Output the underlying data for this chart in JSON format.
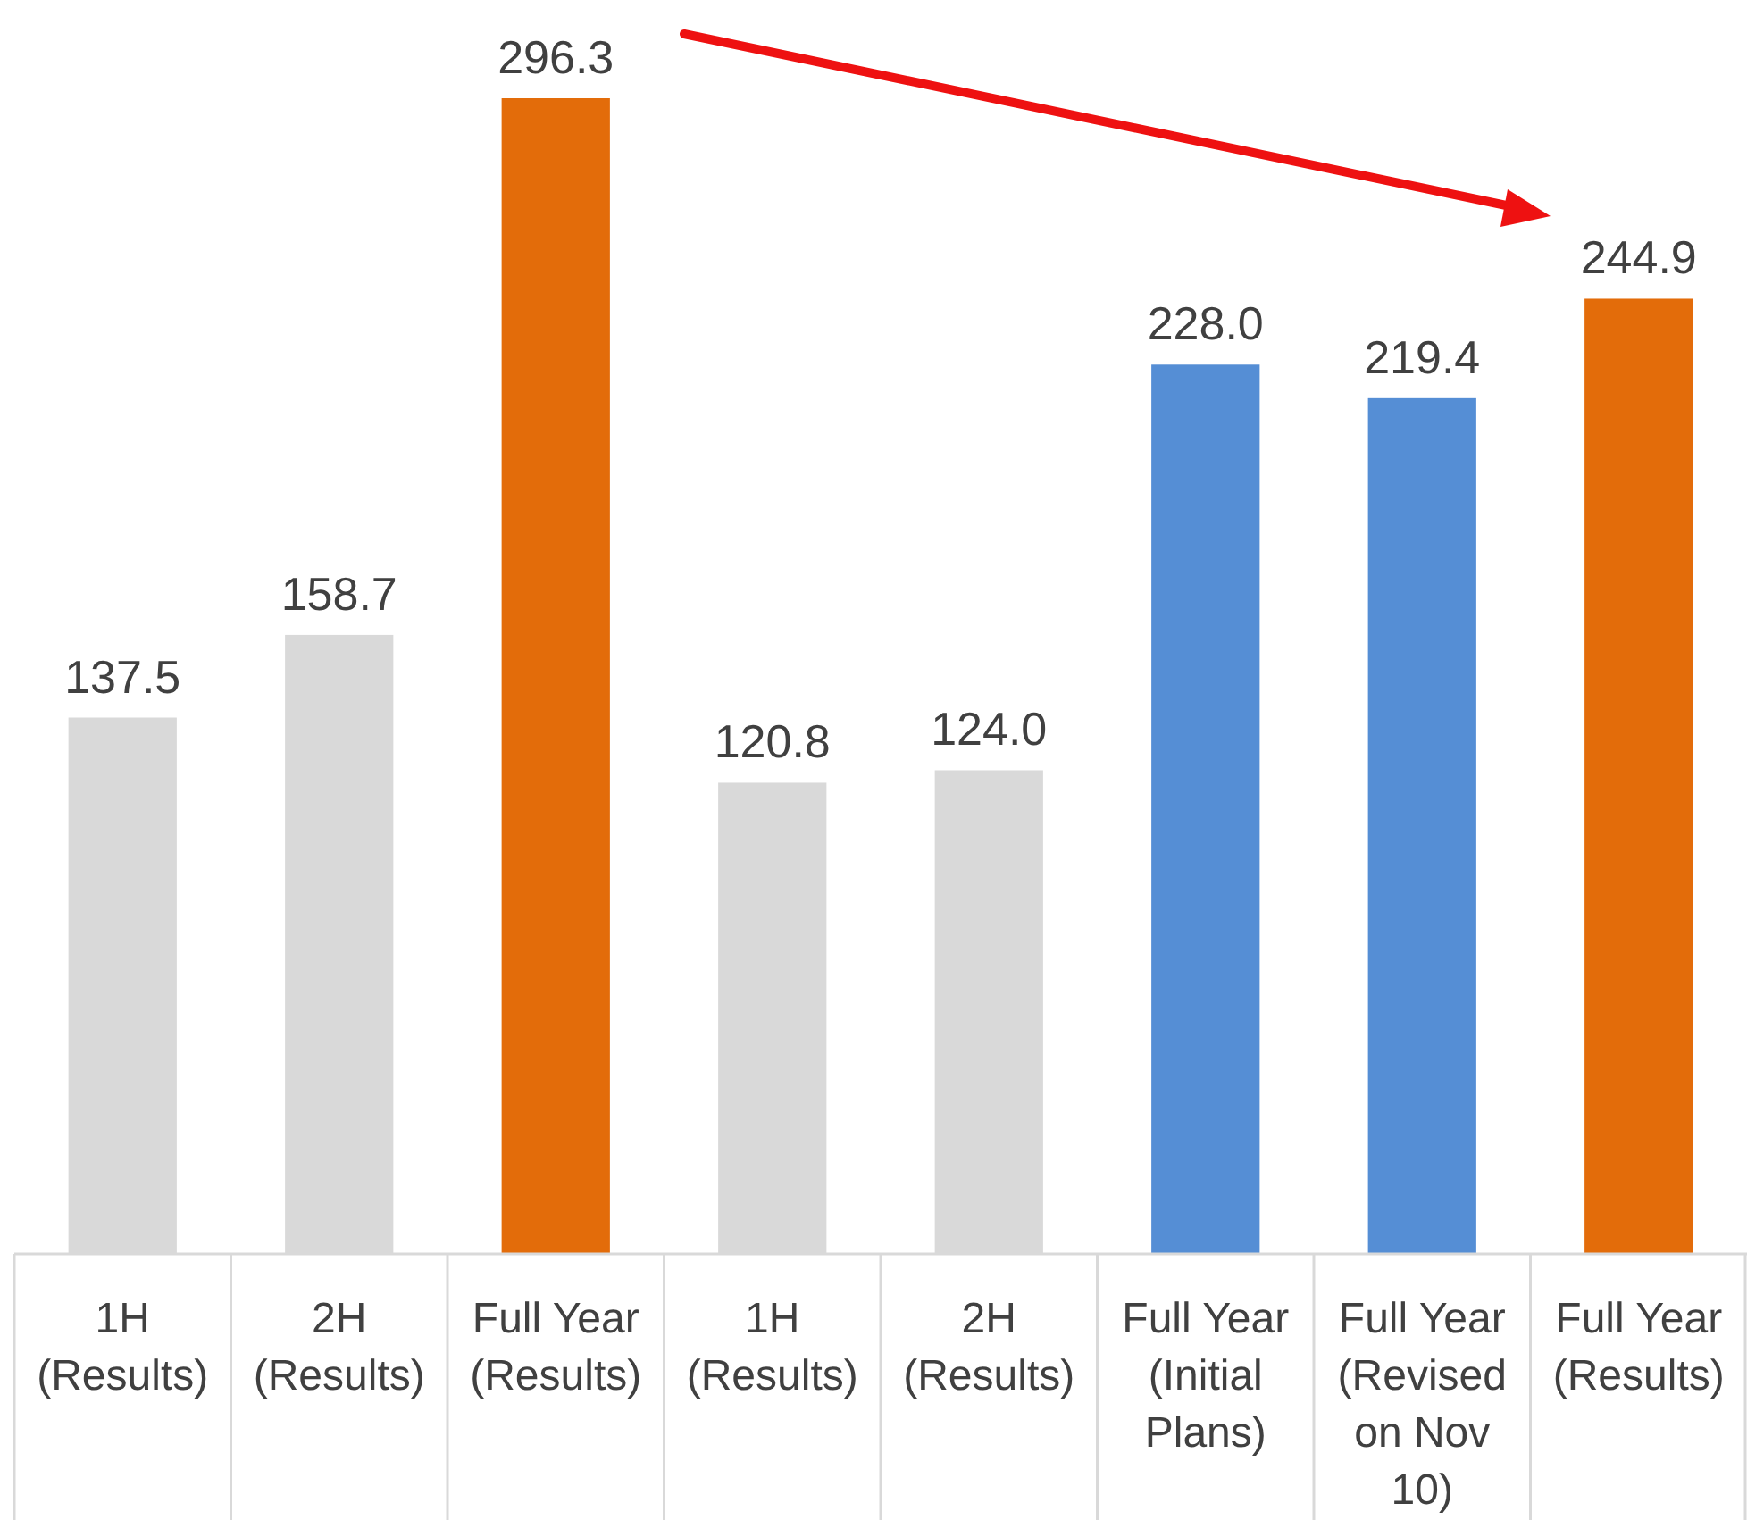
{
  "chart_data": {
    "type": "bar",
    "categories": [
      "1H\n(Results)",
      "2H\n(Results)",
      "Full Year\n(Results)",
      "1H\n(Results)",
      "2H\n(Results)",
      "Full Year\n(Initial\nPlans)",
      "Full Year\n(Revised\non Nov\n10)",
      "Full Year\n(Results)"
    ],
    "values": [
      137.5,
      158.7,
      296.3,
      120.8,
      124.0,
      228.0,
      219.4,
      244.9
    ],
    "colors": [
      "#d9d9d9",
      "#d9d9d9",
      "#e36c0a",
      "#d9d9d9",
      "#d9d9d9",
      "#558ed5",
      "#558ed5",
      "#e36c0a"
    ],
    "value_labels": [
      "137.5",
      "158.7",
      "296.3",
      "120.8",
      "124.0",
      "228.0",
      "219.4",
      "244.9"
    ]
  }
}
